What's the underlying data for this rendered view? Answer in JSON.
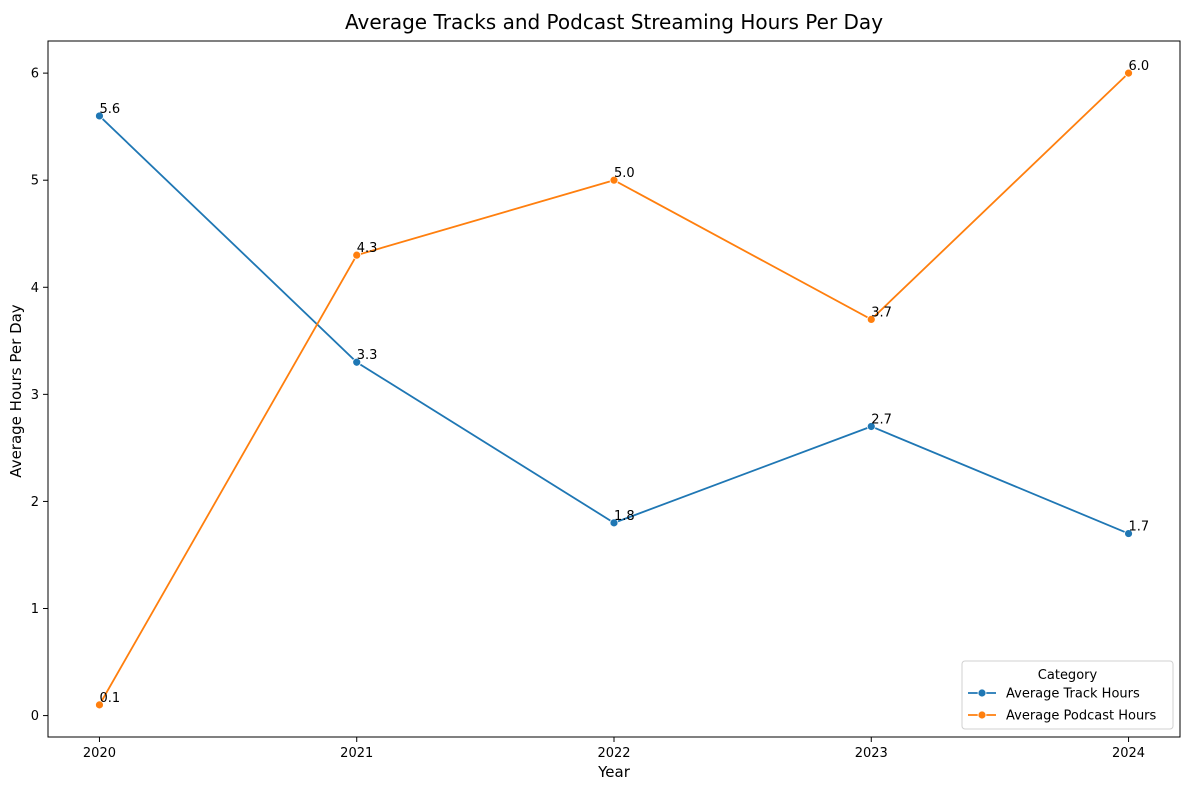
{
  "chart_data": {
    "type": "line",
    "title": "Average Tracks and Podcast Streaming Hours Per Day",
    "xlabel": "Year",
    "ylabel": "Average Hours Per Day",
    "x": [
      "2020",
      "2021",
      "2022",
      "2023",
      "2024"
    ],
    "x_values": [
      2020,
      2021,
      2022,
      2023,
      2024
    ],
    "xlim": [
      2019.8,
      2024.2
    ],
    "ylim": [
      -0.2,
      6.3
    ],
    "yticks": [
      0,
      1,
      2,
      3,
      4,
      5,
      6
    ],
    "series": [
      {
        "name": "Average Track Hours",
        "values": [
          5.6,
          3.3,
          1.8,
          2.7,
          1.7
        ],
        "labels": [
          "5.6",
          "3.3",
          "1.8",
          "2.7",
          "1.7"
        ],
        "color": "#1f77b4"
      },
      {
        "name": "Average Podcast Hours",
        "values": [
          0.1,
          4.3,
          5.0,
          3.7,
          6.0
        ],
        "labels": [
          "0.1",
          "4.3",
          "5.0",
          "3.7",
          "6.0"
        ],
        "color": "#ff7f0e"
      }
    ],
    "legend": {
      "title": "Category",
      "placement": "lower-right"
    },
    "grid": false
  }
}
